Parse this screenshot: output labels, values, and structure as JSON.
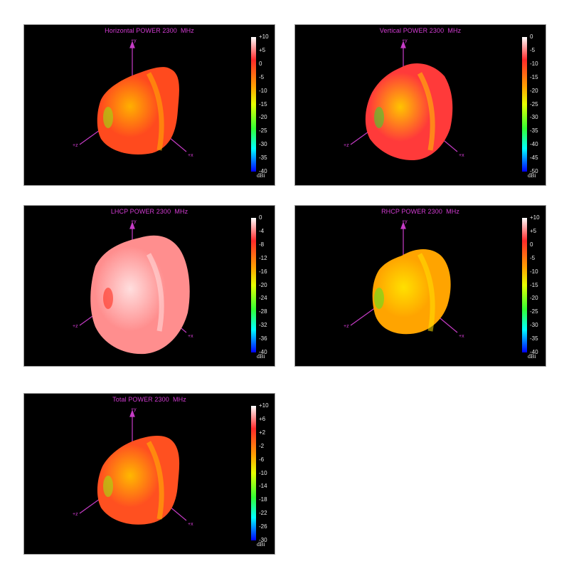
{
  "chart_data": [
    {
      "type": "3d-radiation-pattern",
      "title": "Horizontal POWER 2300  MHz",
      "colorbar": {
        "ticks": [
          "+10",
          "+5",
          "0",
          "-5",
          "-10",
          "-15",
          "-20",
          "-25",
          "-30",
          "-35",
          "-40"
        ],
        "unit": "dBi",
        "range": [
          -40,
          10
        ]
      },
      "axes": {
        "y": "+y",
        "z": "+z",
        "x": "+x"
      },
      "colors": {
        "body": "#ff4a1e",
        "highlight": "#ffb000",
        "low": "#9adf10"
      }
    },
    {
      "type": "3d-radiation-pattern",
      "title": "Vertical POWER 2300  MHz",
      "colorbar": {
        "ticks": [
          "0",
          "-5",
          "-10",
          "-15",
          "-20",
          "-25",
          "-30",
          "-35",
          "-40",
          "-45",
          "-50"
        ],
        "unit": "dBi",
        "range": [
          -50,
          0
        ]
      },
      "axes": {
        "y": "+y",
        "z": "+z",
        "x": "+x"
      },
      "colors": {
        "body": "#ff3a3a",
        "highlight": "#ffc400",
        "low": "#40d030"
      }
    },
    {
      "type": "3d-radiation-pattern",
      "title": "LHCP POWER 2300  MHz",
      "colorbar": {
        "ticks": [
          "0",
          "-4",
          "-8",
          "-12",
          "-16",
          "-20",
          "-24",
          "-28",
          "-32",
          "-36",
          "-40"
        ],
        "unit": "dBi",
        "range": [
          -40,
          0
        ]
      },
      "axes": {
        "y": "+y",
        "z": "+z",
        "x": "+x"
      },
      "colors": {
        "body": "#ff8e8e",
        "highlight": "#ffdede",
        "low": "#ff3020"
      }
    },
    {
      "type": "3d-radiation-pattern",
      "title": "RHCP POWER 2300  MHz",
      "colorbar": {
        "ticks": [
          "+10",
          "+5",
          "0",
          "-5",
          "-10",
          "-15",
          "-20",
          "-25",
          "-30",
          "-35",
          "-40"
        ],
        "unit": "dBi",
        "range": [
          -40,
          10
        ]
      },
      "axes": {
        "y": "+y",
        "z": "+z",
        "x": "+x"
      },
      "colors": {
        "body": "#ffa400",
        "highlight": "#ffe000",
        "low": "#60e020"
      }
    },
    {
      "type": "3d-radiation-pattern",
      "title": "Total POWER 2300  MHz",
      "colorbar": {
        "ticks": [
          "+10",
          "+6",
          "+2",
          "-2",
          "-6",
          "-10",
          "-14",
          "-18",
          "-22",
          "-26",
          "-30"
        ],
        "unit": "dBi",
        "range": [
          -30,
          10
        ]
      },
      "axes": {
        "y": "+y",
        "z": "+z",
        "x": "+x"
      },
      "colors": {
        "body": "#ff5020",
        "highlight": "#ffb800",
        "low": "#a0e010"
      }
    }
  ]
}
